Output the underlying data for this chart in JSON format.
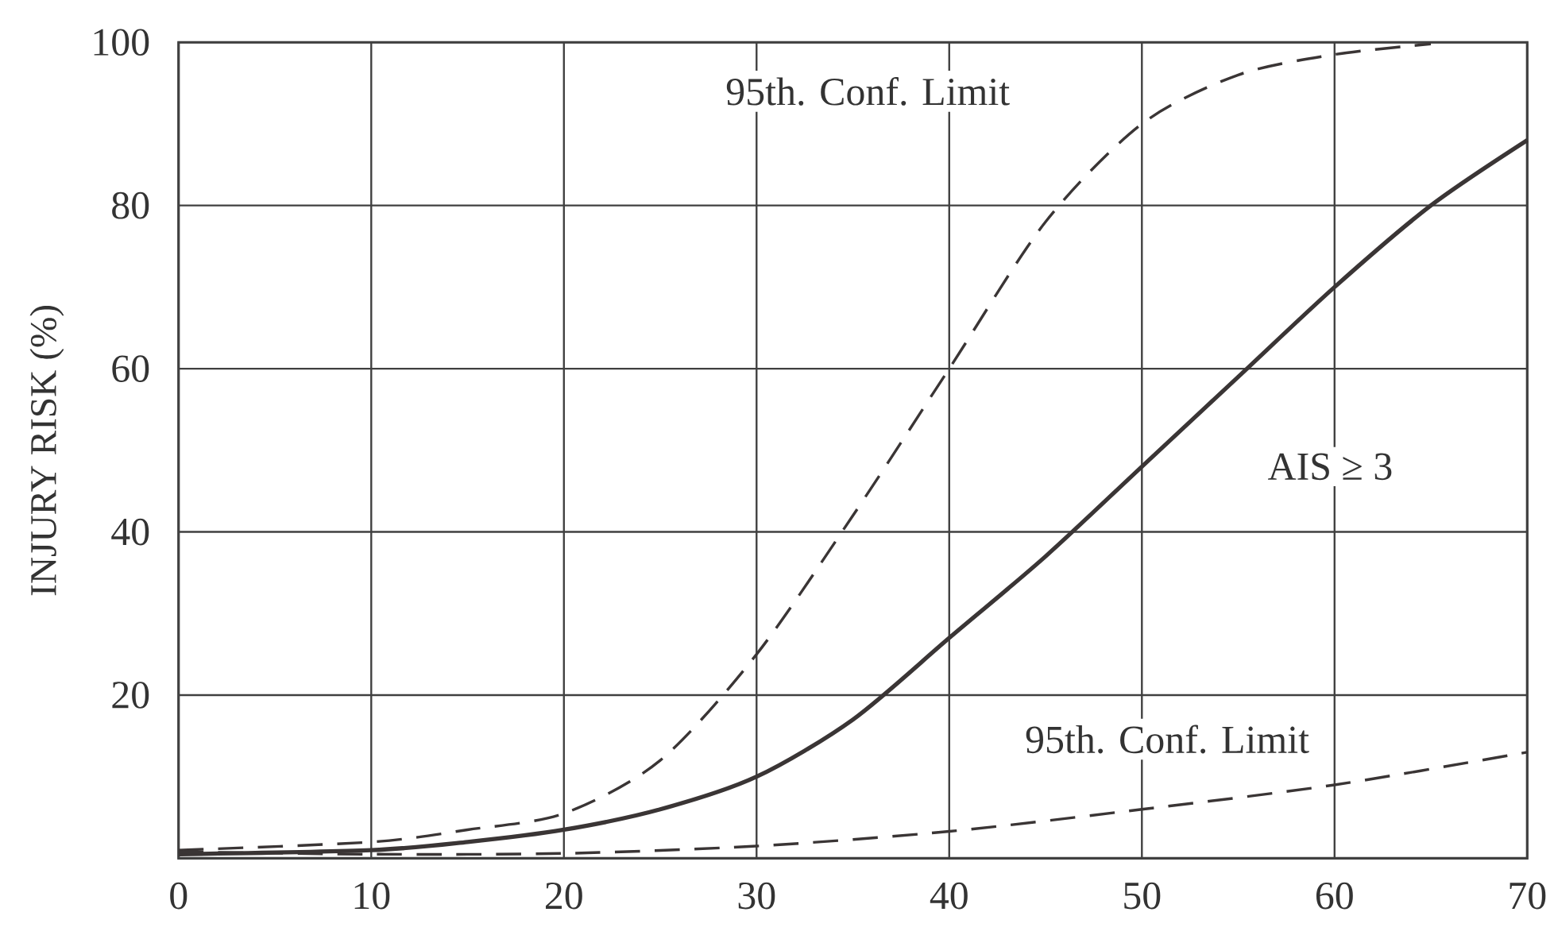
{
  "chart_data": {
    "type": "line",
    "ylabel": "INJURY RISK (%)",
    "series": [
      {
        "color": "#3a3535",
        "line_style": "dashed",
        "x": [
          0,
          10,
          15,
          20,
          25,
          30,
          35,
          40,
          45,
          50,
          55,
          60,
          65
        ],
        "values": [
          1,
          2,
          3.5,
          5.5,
          12,
          25,
          42,
          60,
          78,
          90,
          96,
          98.5,
          99.8
        ]
      },
      {
        "color": "#3a3535",
        "line_style": "solid",
        "x": [
          0,
          10,
          15,
          20,
          25,
          30,
          35,
          40,
          45,
          50,
          55,
          60,
          65,
          70
        ],
        "values": [
          0.5,
          1,
          2,
          3.5,
          6,
          10,
          17,
          27,
          37,
          48,
          59,
          70,
          80,
          88
        ]
      },
      {
        "color": "#3a3535",
        "line_style": "dashed",
        "x": [
          0,
          10,
          20,
          30,
          40,
          50,
          60,
          70
        ],
        "values": [
          0.8,
          0.5,
          0.6,
          1.5,
          3.3,
          6,
          9,
          13
        ]
      }
    ],
    "xlim": [
      0,
      70
    ],
    "ylim": [
      0,
      100
    ],
    "xticks": [
      0,
      10,
      20,
      30,
      40,
      50,
      60,
      70
    ],
    "yticks": [
      {
        "value": 0,
        "label": null
      },
      20,
      40,
      60,
      80,
      100
    ],
    "grid": true,
    "annotations": [
      "95th.  Conf.  Limit",
      "AIS ≥ 3",
      "95th.  Conf.  Limit"
    ]
  }
}
